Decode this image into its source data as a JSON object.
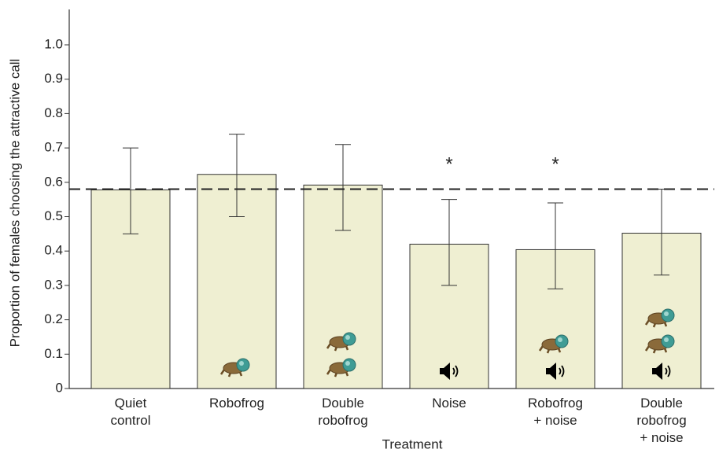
{
  "chart_data": {
    "type": "bar",
    "x_label": "Treatment",
    "y_label": "Proportion of females choosing the attractive call",
    "categories": [
      "Quiet\ncontrol",
      "Robofrog",
      "Double\nrobofrog",
      "Noise",
      "Robofrog\n+ noise",
      "Double\nrobofrog\n+ noise"
    ],
    "values": [
      0.578,
      0.623,
      0.592,
      0.42,
      0.404,
      0.452
    ],
    "ci_low": [
      0.45,
      0.5,
      0.46,
      0.3,
      0.29,
      0.33
    ],
    "ci_high": [
      0.7,
      0.74,
      0.71,
      0.55,
      0.54,
      0.58
    ],
    "significance": [
      null,
      null,
      null,
      "*",
      "*",
      null
    ],
    "reference_line": 0.58,
    "color": "#efefd2",
    "ylim": [
      0,
      1.1
    ],
    "yticks": [
      0,
      0.1,
      0.2,
      0.3,
      0.4,
      0.5,
      0.6,
      0.7,
      0.8,
      0.9,
      {
        "value": 1,
        "label": "1.0"
      }
    ]
  }
}
